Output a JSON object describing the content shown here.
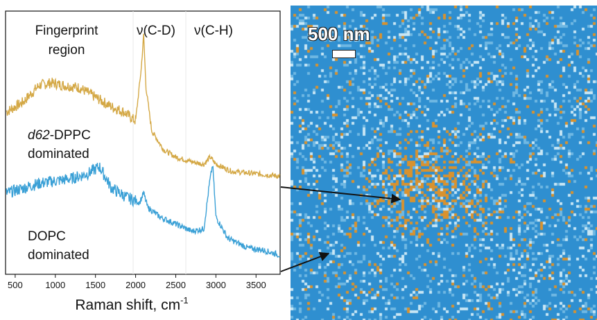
{
  "spectrum": {
    "labels": {
      "fingerprint_line1": "Fingerprint",
      "fingerprint_line2": "region",
      "cd_peak": "ν(C-D)",
      "ch_peak": "ν(C-H)",
      "dppc_prefix": "d62",
      "dppc_suffix": "-DPPC",
      "dppc_line2": "dominated",
      "dopc_line1": "DOPC",
      "dopc_line2": "dominated"
    },
    "xlabel": "Raman shift, cm",
    "xlabel_sup": "-1"
  },
  "chart_data": {
    "type": "line",
    "xlabel": "Raman shift, cm-1",
    "ylabel": "",
    "xlim": [
      380,
      3800
    ],
    "x_ticks": [
      "500",
      "1000",
      "1500",
      "2000",
      "2500",
      "3000",
      "3500"
    ],
    "y_ticks_shown": false,
    "series": [
      {
        "name": "d62-DPPC dominated",
        "color": "#d4a845",
        "x": [
          400,
          600,
          800,
          950,
          1100,
          1300,
          1500,
          1700,
          1850,
          2000,
          2070,
          2100,
          2130,
          2200,
          2350,
          2500,
          2700,
          2850,
          2930,
          3000,
          3200,
          3500,
          3800
        ],
        "y": [
          4.7,
          4.9,
          5.25,
          5.3,
          5.25,
          5.2,
          5.0,
          4.8,
          4.7,
          4.5,
          5.6,
          6.3,
          5.2,
          4.3,
          3.9,
          3.75,
          3.65,
          3.6,
          3.75,
          3.6,
          3.45,
          3.4,
          3.35
        ]
      },
      {
        "name": "DOPC dominated",
        "color": "#3aa0d6",
        "x": [
          400,
          600,
          800,
          1000,
          1200,
          1400,
          1550,
          1700,
          1900,
          2050,
          2100,
          2150,
          2300,
          2500,
          2700,
          2850,
          2920,
          2960,
          3000,
          3150,
          3400,
          3600,
          3800
        ],
        "y": [
          3.0,
          3.1,
          3.2,
          3.25,
          3.3,
          3.4,
          3.55,
          3.1,
          2.9,
          2.8,
          3.0,
          2.7,
          2.5,
          2.35,
          2.2,
          2.25,
          3.2,
          3.6,
          2.5,
          2.05,
          1.85,
          1.8,
          1.7
        ]
      }
    ],
    "annotations": [
      "ν(C-D)",
      "ν(C-H)"
    ]
  },
  "map": {
    "scale_label": "500 nm",
    "colors": {
      "background": "#2f8fd0",
      "light_pixel": "#c8e6f5",
      "mid_pixel": "#6fb8e3",
      "orange_pixel": "#d8922f"
    }
  },
  "colors": {
    "dppc_trace": "#d4a845",
    "dopc_trace": "#3aa0d6",
    "axis": "#111111",
    "arrow": "#111111"
  }
}
